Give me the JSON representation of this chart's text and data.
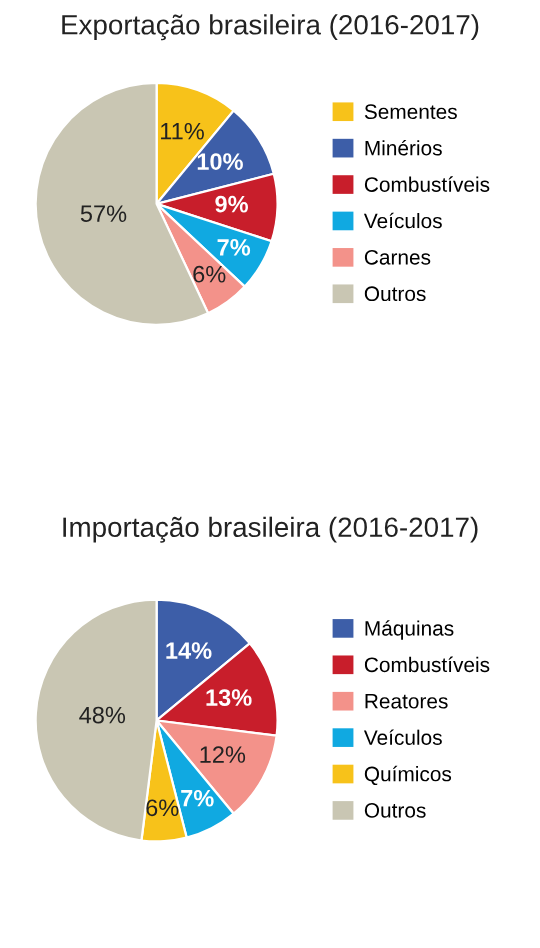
{
  "chart_data": [
    {
      "type": "pie",
      "title": "Exportação brasileira (2016-2017)",
      "categories": [
        "Sementes",
        "Minérios",
        "Combustíveis",
        "Veículos",
        "Carnes",
        "Outros"
      ],
      "values": [
        11,
        10,
        9,
        7,
        6,
        57
      ],
      "colors": [
        "#f7c21a",
        "#3d5ea8",
        "#c81e2b",
        "#10a9e1",
        "#f3928a",
        "#c9c6b3"
      ],
      "value_labels": [
        "11%",
        "10%",
        "9%",
        "7%",
        "6%",
        "57%"
      ],
      "legend": "right"
    },
    {
      "type": "pie",
      "title": "Importação brasileira (2016-2017)",
      "categories": [
        "Máquinas",
        "Combustíveis",
        "Reatores",
        "Veículos",
        "Químicos",
        "Outros"
      ],
      "values": [
        14,
        13,
        12,
        7,
        6,
        48
      ],
      "colors": [
        "#3d5ea8",
        "#c81e2b",
        "#f3928a",
        "#10a9e1",
        "#f7c21a",
        "#c9c6b3"
      ],
      "value_labels": [
        "14%",
        "13%",
        "12%",
        "7%",
        "6%",
        "48%"
      ],
      "legend": "right"
    }
  ]
}
